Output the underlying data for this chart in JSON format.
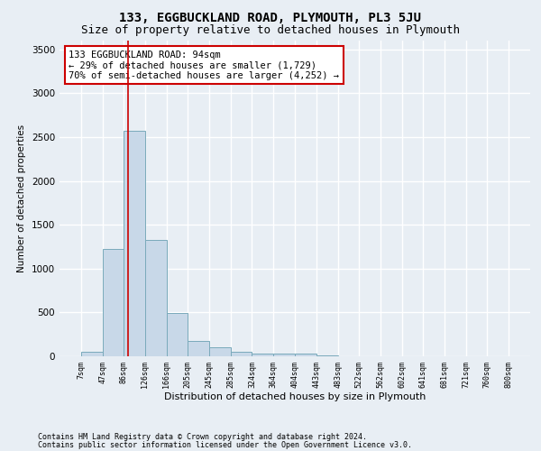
{
  "title1": "133, EGGBUCKLAND ROAD, PLYMOUTH, PL3 5JU",
  "title2": "Size of property relative to detached houses in Plymouth",
  "xlabel": "Distribution of detached houses by size in Plymouth",
  "ylabel": "Number of detached properties",
  "footnote1": "Contains HM Land Registry data © Crown copyright and database right 2024.",
  "footnote2": "Contains public sector information licensed under the Open Government Licence v3.0.",
  "annotation_line1": "133 EGGBUCKLAND ROAD: 94sqm",
  "annotation_line2": "← 29% of detached houses are smaller (1,729)",
  "annotation_line3": "70% of semi-detached houses are larger (4,252) →",
  "bar_edges": [
    7,
    47,
    86,
    126,
    166,
    205,
    245,
    285,
    324,
    364,
    404,
    443,
    483,
    522,
    562,
    602,
    641,
    681,
    721,
    760,
    800
  ],
  "bar_heights": [
    50,
    1220,
    2570,
    1330,
    490,
    180,
    100,
    50,
    30,
    30,
    30,
    10,
    5,
    5,
    5,
    0,
    0,
    0,
    0,
    0
  ],
  "bar_color": "#c8d8e8",
  "bar_edgecolor": "#7aaabb",
  "property_size": 94,
  "vline_color": "#cc0000",
  "annotation_box_edgecolor": "#cc0000",
  "background_color": "#e8eef4",
  "plot_bg_color": "#e8eef4",
  "ylim": [
    0,
    3600
  ],
  "yticks": [
    0,
    500,
    1000,
    1500,
    2000,
    2500,
    3000,
    3500
  ],
  "grid_color": "#ffffff",
  "title1_fontsize": 10,
  "title2_fontsize": 9,
  "annotation_fontsize": 7.5,
  "xlabel_fontsize": 8,
  "ylabel_fontsize": 7.5,
  "footnote_fontsize": 6,
  "ytick_fontsize": 7.5,
  "xtick_fontsize": 6
}
